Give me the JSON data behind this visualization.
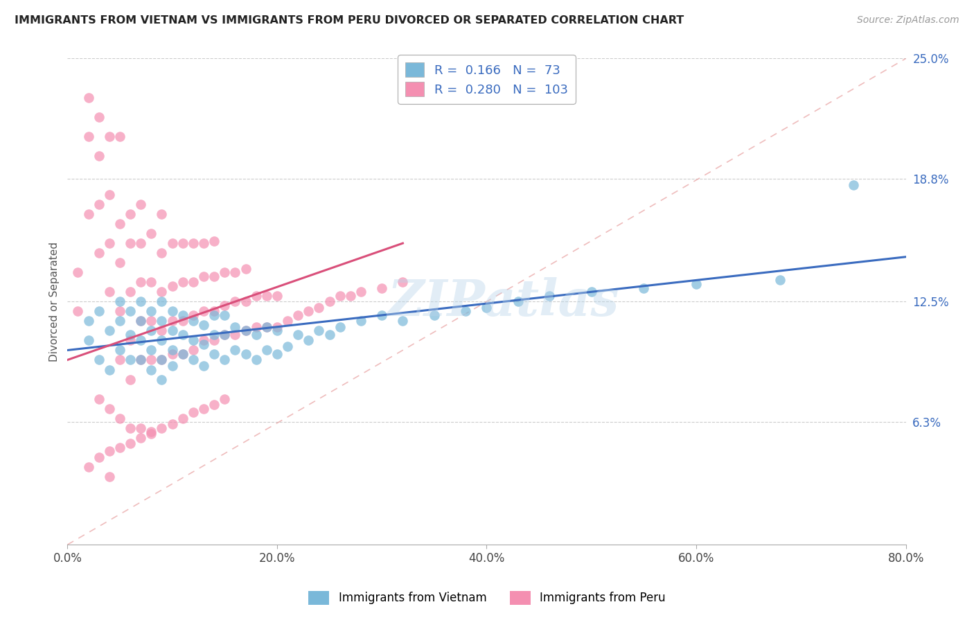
{
  "title": "IMMIGRANTS FROM VIETNAM VS IMMIGRANTS FROM PERU DIVORCED OR SEPARATED CORRELATION CHART",
  "source": "Source: ZipAtlas.com",
  "xlabel": "",
  "ylabel": "Divorced or Separated",
  "legend_label_1": "Immigrants from Vietnam",
  "legend_label_2": "Immigrants from Peru",
  "r1": 0.166,
  "n1": 73,
  "r2": 0.28,
  "n2": 103,
  "color1": "#7ab8d9",
  "color2": "#f48fb1",
  "trendline1_color": "#3a6bbf",
  "trendline2_color": "#d94f7a",
  "watermark": "ZIPatlas",
  "xmin": 0.0,
  "xmax": 0.8,
  "ymin": 0.0,
  "ymax": 0.25,
  "yticks": [
    0.063,
    0.125,
    0.188,
    0.25
  ],
  "ytick_labels": [
    "6.3%",
    "12.5%",
    "18.8%",
    "25.0%"
  ],
  "xtick_labels": [
    "0.0%",
    "20.0%",
    "40.0%",
    "60.0%",
    "80.0%"
  ],
  "xticks": [
    0.0,
    0.2,
    0.4,
    0.6,
    0.8
  ],
  "vietnam_x": [
    0.02,
    0.02,
    0.03,
    0.03,
    0.04,
    0.04,
    0.05,
    0.05,
    0.05,
    0.06,
    0.06,
    0.06,
    0.07,
    0.07,
    0.07,
    0.07,
    0.08,
    0.08,
    0.08,
    0.08,
    0.09,
    0.09,
    0.09,
    0.09,
    0.09,
    0.1,
    0.1,
    0.1,
    0.1,
    0.11,
    0.11,
    0.11,
    0.12,
    0.12,
    0.12,
    0.13,
    0.13,
    0.13,
    0.14,
    0.14,
    0.14,
    0.15,
    0.15,
    0.15,
    0.16,
    0.16,
    0.17,
    0.17,
    0.18,
    0.18,
    0.19,
    0.19,
    0.2,
    0.2,
    0.21,
    0.22,
    0.23,
    0.24,
    0.25,
    0.26,
    0.28,
    0.3,
    0.32,
    0.35,
    0.38,
    0.4,
    0.43,
    0.46,
    0.5,
    0.55,
    0.6,
    0.68,
    0.75
  ],
  "vietnam_y": [
    0.105,
    0.115,
    0.095,
    0.12,
    0.09,
    0.11,
    0.1,
    0.115,
    0.125,
    0.095,
    0.108,
    0.12,
    0.095,
    0.105,
    0.115,
    0.125,
    0.09,
    0.1,
    0.11,
    0.12,
    0.085,
    0.095,
    0.105,
    0.115,
    0.125,
    0.092,
    0.1,
    0.11,
    0.12,
    0.098,
    0.108,
    0.118,
    0.095,
    0.105,
    0.115,
    0.092,
    0.103,
    0.113,
    0.098,
    0.108,
    0.118,
    0.095,
    0.108,
    0.118,
    0.1,
    0.112,
    0.098,
    0.11,
    0.095,
    0.108,
    0.1,
    0.112,
    0.098,
    0.11,
    0.102,
    0.108,
    0.105,
    0.11,
    0.108,
    0.112,
    0.115,
    0.118,
    0.115,
    0.118,
    0.12,
    0.122,
    0.125,
    0.128,
    0.13,
    0.132,
    0.134,
    0.136,
    0.185
  ],
  "peru_x": [
    0.01,
    0.01,
    0.02,
    0.02,
    0.02,
    0.03,
    0.03,
    0.03,
    0.03,
    0.04,
    0.04,
    0.04,
    0.04,
    0.05,
    0.05,
    0.05,
    0.05,
    0.05,
    0.06,
    0.06,
    0.06,
    0.06,
    0.06,
    0.07,
    0.07,
    0.07,
    0.07,
    0.07,
    0.08,
    0.08,
    0.08,
    0.08,
    0.09,
    0.09,
    0.09,
    0.09,
    0.09,
    0.1,
    0.1,
    0.1,
    0.1,
    0.11,
    0.11,
    0.11,
    0.11,
    0.12,
    0.12,
    0.12,
    0.12,
    0.13,
    0.13,
    0.13,
    0.13,
    0.14,
    0.14,
    0.14,
    0.14,
    0.15,
    0.15,
    0.15,
    0.16,
    0.16,
    0.16,
    0.17,
    0.17,
    0.17,
    0.18,
    0.18,
    0.19,
    0.19,
    0.2,
    0.2,
    0.21,
    0.22,
    0.23,
    0.24,
    0.25,
    0.26,
    0.27,
    0.28,
    0.3,
    0.32,
    0.03,
    0.04,
    0.05,
    0.06,
    0.07,
    0.08,
    0.02,
    0.03,
    0.04,
    0.05,
    0.06,
    0.07,
    0.08,
    0.09,
    0.1,
    0.11,
    0.12,
    0.13,
    0.14,
    0.15,
    0.04
  ],
  "peru_y": [
    0.12,
    0.14,
    0.17,
    0.21,
    0.23,
    0.15,
    0.175,
    0.2,
    0.22,
    0.13,
    0.155,
    0.18,
    0.21,
    0.095,
    0.12,
    0.145,
    0.165,
    0.21,
    0.085,
    0.105,
    0.13,
    0.155,
    0.17,
    0.095,
    0.115,
    0.135,
    0.155,
    0.175,
    0.095,
    0.115,
    0.135,
    0.16,
    0.095,
    0.11,
    0.13,
    0.15,
    0.17,
    0.098,
    0.115,
    0.133,
    0.155,
    0.098,
    0.115,
    0.135,
    0.155,
    0.1,
    0.118,
    0.135,
    0.155,
    0.105,
    0.12,
    0.138,
    0.155,
    0.105,
    0.12,
    0.138,
    0.156,
    0.108,
    0.123,
    0.14,
    0.108,
    0.125,
    0.14,
    0.11,
    0.125,
    0.142,
    0.112,
    0.128,
    0.112,
    0.128,
    0.112,
    0.128,
    0.115,
    0.118,
    0.12,
    0.122,
    0.125,
    0.128,
    0.128,
    0.13,
    0.132,
    0.135,
    0.075,
    0.07,
    0.065,
    0.06,
    0.06,
    0.058,
    0.04,
    0.045,
    0.048,
    0.05,
    0.052,
    0.055,
    0.057,
    0.06,
    0.062,
    0.065,
    0.068,
    0.07,
    0.072,
    0.075,
    0.035
  ],
  "trendline1_x0": 0.0,
  "trendline1_y0": 0.1,
  "trendline1_x1": 0.8,
  "trendline1_y1": 0.148,
  "trendline2_x0": 0.0,
  "trendline2_y0": 0.095,
  "trendline2_x1": 0.32,
  "trendline2_y1": 0.155
}
